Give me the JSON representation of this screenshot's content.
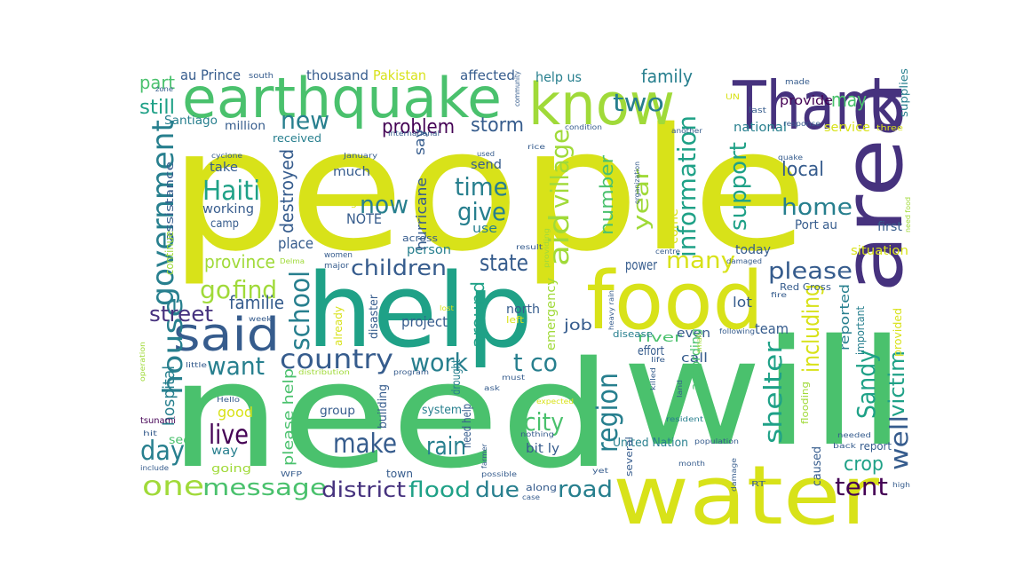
{
  "palette": {
    "yellow": "#d8e219",
    "lime": "#a0da39",
    "lightgreen": "#4ac16d",
    "green": "#1fa187",
    "teal": "#277f8e",
    "blue": "#365c8d",
    "indigo": "#46327e",
    "purple": "#440154"
  },
  "words": [
    {
      "text": "people",
      "color": "yellow"
    },
    {
      "text": "need",
      "color": "lightgreen"
    },
    {
      "text": "will",
      "color": "lightgreen"
    },
    {
      "text": "help",
      "color": "green"
    },
    {
      "text": "area",
      "color": "indigo"
    },
    {
      "text": "food",
      "color": "yellow"
    },
    {
      "text": "water",
      "color": "yellow"
    },
    {
      "text": "Thank",
      "color": "indigo"
    },
    {
      "text": "earthquake",
      "color": "lightgreen"
    },
    {
      "text": "know",
      "color": "lime"
    },
    {
      "text": "said",
      "color": "blue"
    },
    {
      "text": "government",
      "color": "teal"
    },
    {
      "text": "country",
      "color": "blue"
    },
    {
      "text": "Haiti",
      "color": "green"
    },
    {
      "text": "house",
      "color": "teal"
    },
    {
      "text": "information",
      "color": "green"
    },
    {
      "text": "aid",
      "color": "lime"
    },
    {
      "text": "village",
      "color": "lime"
    },
    {
      "text": "children",
      "color": "blue"
    },
    {
      "text": "one",
      "color": "lime"
    },
    {
      "text": "message",
      "color": "lightgreen"
    },
    {
      "text": "district",
      "color": "indigo"
    },
    {
      "text": "flood",
      "color": "green"
    },
    {
      "text": "due",
      "color": "teal"
    },
    {
      "text": "road",
      "color": "teal"
    },
    {
      "text": "tent",
      "color": "purple"
    },
    {
      "text": "well",
      "color": "blue"
    },
    {
      "text": "victim",
      "color": "green"
    },
    {
      "text": "crop",
      "color": "green"
    },
    {
      "text": "Sandy",
      "color": "green"
    },
    {
      "text": "shelter",
      "color": "green"
    },
    {
      "text": "region",
      "color": "teal"
    },
    {
      "text": "city",
      "color": "lightgreen"
    },
    {
      "text": "rain",
      "color": "teal"
    },
    {
      "text": "make",
      "color": "blue"
    },
    {
      "text": "live",
      "color": "purple"
    },
    {
      "text": "day",
      "color": "teal"
    },
    {
      "text": "want",
      "color": "teal"
    },
    {
      "text": "street",
      "color": "indigo"
    },
    {
      "text": "go",
      "color": "lime"
    },
    {
      "text": "find",
      "color": "lime"
    },
    {
      "text": "school",
      "color": "teal"
    },
    {
      "text": "work",
      "color": "teal"
    },
    {
      "text": "t co",
      "color": "teal"
    },
    {
      "text": "state",
      "color": "blue"
    },
    {
      "text": "time",
      "color": "teal"
    },
    {
      "text": "give",
      "color": "teal"
    },
    {
      "text": "new",
      "color": "teal"
    },
    {
      "text": "now",
      "color": "teal"
    },
    {
      "text": "two",
      "color": "teal"
    },
    {
      "text": "many",
      "color": "yellow"
    },
    {
      "text": "please",
      "color": "blue"
    },
    {
      "text": "including",
      "color": "yellow"
    },
    {
      "text": "home",
      "color": "teal"
    },
    {
      "text": "support",
      "color": "green"
    },
    {
      "text": "local",
      "color": "blue"
    },
    {
      "text": "year",
      "color": "lime"
    },
    {
      "text": "number",
      "color": "lightgreen"
    },
    {
      "text": "family",
      "color": "teal"
    },
    {
      "text": "may",
      "color": "lightgreen"
    },
    {
      "text": "still",
      "color": "green"
    },
    {
      "text": "part",
      "color": "lightgreen"
    },
    {
      "text": "au Prince",
      "color": "blue"
    },
    {
      "text": "thousand",
      "color": "blue"
    },
    {
      "text": "Pakistan",
      "color": "yellow"
    },
    {
      "text": "affected",
      "color": "blue"
    },
    {
      "text": "help us",
      "color": "teal"
    },
    {
      "text": "problem",
      "color": "purple"
    },
    {
      "text": "storm",
      "color": "blue"
    },
    {
      "text": "destroyed",
      "color": "blue"
    },
    {
      "text": "familie",
      "color": "blue"
    },
    {
      "text": "province",
      "color": "lime"
    },
    {
      "text": "place",
      "color": "blue"
    },
    {
      "text": "person",
      "color": "teal"
    },
    {
      "text": "hospital",
      "color": "teal"
    },
    {
      "text": "good",
      "color": "yellow"
    },
    {
      "text": "please help",
      "color": "lightgreen"
    },
    {
      "text": "NOTE",
      "color": "blue"
    },
    {
      "text": "hurricane",
      "color": "blue"
    },
    {
      "text": "say",
      "color": "blue"
    },
    {
      "text": "much",
      "color": "blue"
    },
    {
      "text": "send",
      "color": "blue"
    },
    {
      "text": "take",
      "color": "blue"
    },
    {
      "text": "working",
      "color": "blue"
    },
    {
      "text": "camp",
      "color": "blue"
    },
    {
      "text": "use",
      "color": "teal"
    },
    {
      "text": "lot",
      "color": "blue"
    },
    {
      "text": "team",
      "color": "blue"
    },
    {
      "text": "today",
      "color": "blue"
    },
    {
      "text": "power",
      "color": "blue"
    },
    {
      "text": "Port au",
      "color": "blue"
    },
    {
      "text": "situation",
      "color": "yellow"
    },
    {
      "text": "first",
      "color": "blue"
    },
    {
      "text": "job",
      "color": "blue"
    },
    {
      "text": "project",
      "color": "blue"
    },
    {
      "text": "around",
      "color": "green"
    },
    {
      "text": "north",
      "color": "blue"
    },
    {
      "text": "emergency",
      "color": "lime"
    },
    {
      "text": "river",
      "color": "lightgreen"
    },
    {
      "text": "even",
      "color": "blue"
    },
    {
      "text": "call",
      "color": "blue"
    },
    {
      "text": "effort",
      "color": "blue"
    },
    {
      "text": "according",
      "color": "lightgreen"
    },
    {
      "text": "reported",
      "color": "teal"
    },
    {
      "text": "important",
      "color": "teal"
    },
    {
      "text": "provided",
      "color": "yellow"
    },
    {
      "text": "report",
      "color": "blue"
    },
    {
      "text": "Santiago",
      "color": "teal"
    },
    {
      "text": "million",
      "color": "blue"
    },
    {
      "text": "received",
      "color": "teal"
    },
    {
      "text": "national",
      "color": "teal"
    },
    {
      "text": "service",
      "color": "yellow"
    },
    {
      "text": "provide",
      "color": "purple"
    },
    {
      "text": "supplies",
      "color": "teal"
    },
    {
      "text": "come",
      "color": "yellow"
    },
    {
      "text": "caused",
      "color": "blue"
    },
    {
      "text": "United Nation",
      "color": "teal"
    },
    {
      "text": "bit ly",
      "color": "blue"
    },
    {
      "text": "group",
      "color": "blue"
    },
    {
      "text": "system",
      "color": "teal"
    },
    {
      "text": "building",
      "color": "blue"
    },
    {
      "text": "disaster",
      "color": "blue"
    },
    {
      "text": "already",
      "color": "yellow"
    },
    {
      "text": "drought",
      "color": "teal"
    },
    {
      "text": "need help",
      "color": "blue"
    },
    {
      "text": "see",
      "color": "lightgreen"
    },
    {
      "text": "way",
      "color": "teal"
    },
    {
      "text": "going",
      "color": "lime"
    },
    {
      "text": "town",
      "color": "blue"
    },
    {
      "text": "along",
      "color": "blue"
    },
    {
      "text": "assistance",
      "color": "blue"
    },
    {
      "text": "continue",
      "color": "lime"
    },
    {
      "text": "tsunami",
      "color": "purple"
    },
    {
      "text": "disease",
      "color": "teal"
    },
    {
      "text": "several",
      "color": "blue"
    },
    {
      "text": "flooding",
      "color": "lime"
    },
    {
      "text": "Red Cross",
      "color": "blue"
    },
    {
      "text": "left",
      "color": "yellow"
    },
    {
      "text": "major",
      "color": "blue"
    },
    {
      "text": "women",
      "color": "blue"
    },
    {
      "text": "across",
      "color": "blue"
    },
    {
      "text": "living",
      "color": "yellow"
    },
    {
      "text": "south",
      "color": "blue"
    },
    {
      "text": "community",
      "color": "blue"
    },
    {
      "text": "UN",
      "color": "yellow"
    },
    {
      "text": "last",
      "color": "blue"
    },
    {
      "text": "zone",
      "color": "blue"
    },
    {
      "text": "cyclone",
      "color": "blue"
    },
    {
      "text": "January",
      "color": "blue"
    },
    {
      "text": "rice",
      "color": "blue"
    },
    {
      "text": "used",
      "color": "blue"
    },
    {
      "text": "international",
      "color": "blue"
    },
    {
      "text": "condition",
      "color": "blue"
    },
    {
      "text": "response",
      "color": "blue"
    },
    {
      "text": "another",
      "color": "blue"
    },
    {
      "text": "three",
      "color": "yellow"
    },
    {
      "text": "organization",
      "color": "blue"
    },
    {
      "text": "quake",
      "color": "blue"
    },
    {
      "text": "result",
      "color": "blue"
    },
    {
      "text": "providing",
      "color": "lime"
    },
    {
      "text": "centre",
      "color": "blue"
    },
    {
      "text": "damaged",
      "color": "blue"
    },
    {
      "text": "fire",
      "color": "blue"
    },
    {
      "text": "need food",
      "color": "lime"
    },
    {
      "text": "Delma",
      "color": "lime"
    },
    {
      "text": "week",
      "color": "blue"
    },
    {
      "text": "lost",
      "color": "yellow"
    },
    {
      "text": "heavy rain",
      "color": "blue"
    },
    {
      "text": "following",
      "color": "blue"
    },
    {
      "text": "small",
      "color": "lime"
    },
    {
      "text": "life",
      "color": "blue"
    },
    {
      "text": "killed",
      "color": "blue"
    },
    {
      "text": "land",
      "color": "blue"
    },
    {
      "text": "resident",
      "color": "teal"
    },
    {
      "text": "population",
      "color": "blue"
    },
    {
      "text": "needed",
      "color": "blue"
    },
    {
      "text": "back",
      "color": "blue"
    },
    {
      "text": "high",
      "color": "blue"
    },
    {
      "text": "operation",
      "color": "lime"
    },
    {
      "text": "little",
      "color": "blue"
    },
    {
      "text": "distribution",
      "color": "lime"
    },
    {
      "text": "program",
      "color": "blue"
    },
    {
      "text": "must",
      "color": "blue"
    },
    {
      "text": "ask",
      "color": "blue"
    },
    {
      "text": "expected",
      "color": "yellow"
    },
    {
      "text": "Hello",
      "color": "blue"
    },
    {
      "text": "hit",
      "color": "blue"
    },
    {
      "text": "include",
      "color": "blue"
    },
    {
      "text": "WFP",
      "color": "blue"
    },
    {
      "text": "farmer",
      "color": "blue"
    },
    {
      "text": "possible",
      "color": "blue"
    },
    {
      "text": "nothing",
      "color": "blue"
    },
    {
      "text": "case",
      "color": "blue"
    },
    {
      "text": "yet",
      "color": "blue"
    },
    {
      "text": "month",
      "color": "blue"
    },
    {
      "text": "damage",
      "color": "blue"
    },
    {
      "text": "RT",
      "color": "blue"
    },
    {
      "text": "made",
      "color": "blue"
    }
  ]
}
